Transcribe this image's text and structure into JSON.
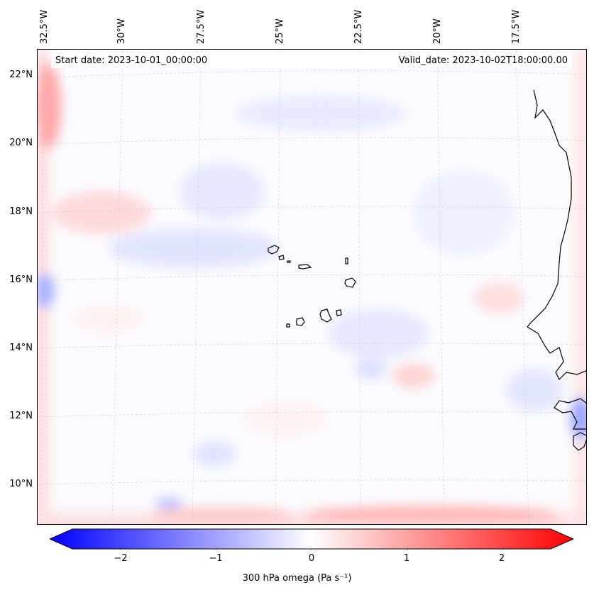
{
  "map": {
    "start_date": "Start date: 2023-10-01_00:00:00",
    "valid_date": "Valid_date: 2023-10-02T18:00:00.00",
    "lon_ticks": [
      "32.5°W",
      "30°W",
      "27.5°W",
      "25°W",
      "22.5°W",
      "20°W",
      "17.5°W"
    ],
    "lat_ticks": [
      "22°N",
      "20°N",
      "18°N",
      "16°N",
      "14°N",
      "12°N",
      "10°N"
    ],
    "extent": {
      "lon_min": -32.9,
      "lon_max": -15.3,
      "lat_min": 8.9,
      "lat_max": 22.8
    },
    "features": [
      "cape-verde-islands",
      "west-africa-coastline"
    ]
  },
  "colorbar": {
    "ticks": [
      "−2",
      "−1",
      "0",
      "1",
      "2"
    ],
    "tick_values": [
      -2,
      -1,
      0,
      1,
      2
    ],
    "range": [
      -2.5,
      2.5
    ],
    "label": "300 hPa omega (Pa s⁻¹)",
    "cmap": "bwr",
    "colors": {
      "min": "#0000ff",
      "mid": "#ffffff",
      "max": "#ff0000"
    }
  }
}
